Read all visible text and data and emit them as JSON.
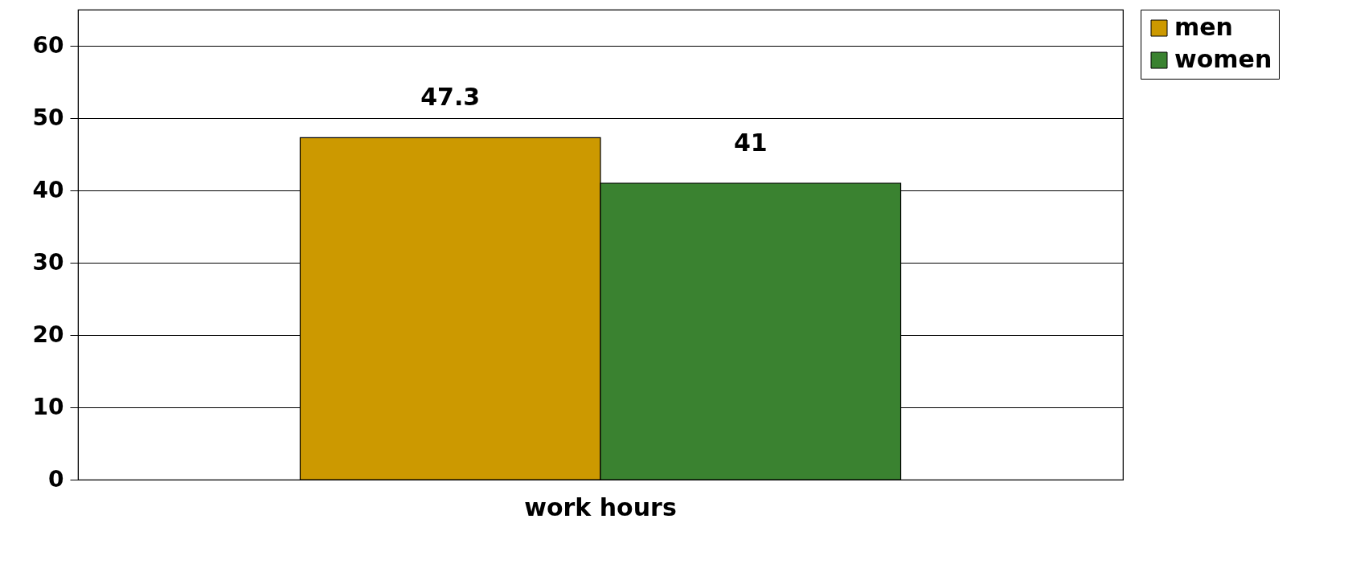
{
  "chart_data": {
    "type": "bar",
    "categories": [
      "work hours"
    ],
    "series": [
      {
        "name": "men",
        "color": "#cc9900",
        "values": [
          47.3
        ]
      },
      {
        "name": "women",
        "color": "#3a8230",
        "values": [
          41
        ]
      }
    ],
    "ylim": [
      0,
      65
    ],
    "yticks": [
      0,
      10,
      20,
      30,
      40,
      50,
      60
    ],
    "grid": "y",
    "legend": "right",
    "data_labels": true
  }
}
